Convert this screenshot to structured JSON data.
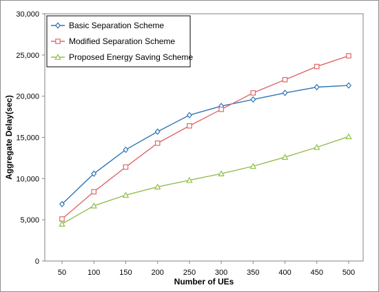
{
  "chart_data": {
    "type": "line",
    "title": "",
    "xlabel": "Number of UEs",
    "ylabel": "Aggregate Delay(sec)",
    "x": [
      50,
      100,
      150,
      200,
      250,
      300,
      350,
      400,
      450,
      500
    ],
    "x_tick_labels": [
      "50",
      "100",
      "150",
      "200",
      "250",
      "300",
      "350",
      "400",
      "450",
      "500"
    ],
    "ylim": [
      0,
      30000
    ],
    "y_ticks": [
      0,
      5000,
      10000,
      15000,
      20000,
      25000,
      30000
    ],
    "y_tick_labels": [
      "0",
      "5,000",
      "10,000",
      "15,000",
      "20,000",
      "25,000",
      "30,000"
    ],
    "grid": false,
    "legend_position": "top-left",
    "series": [
      {
        "name": "Basic Separation Scheme",
        "color": "#2e75b6",
        "marker": "diamond",
        "values": [
          6900,
          10600,
          13500,
          15700,
          17700,
          18800,
          19600,
          20400,
          21100,
          21300
        ]
      },
      {
        "name": "Modified Separation Scheme",
        "color": "#e06666",
        "marker": "square",
        "values": [
          5100,
          8400,
          11400,
          14300,
          16400,
          18400,
          20400,
          22000,
          23600,
          24900
        ]
      },
      {
        "name": "Proposed Energy Saving Scheme",
        "color": "#8fbf4a",
        "marker": "triangle",
        "values": [
          4500,
          6700,
          8000,
          9000,
          9800,
          10600,
          11500,
          12600,
          13800,
          15100
        ]
      }
    ]
  }
}
